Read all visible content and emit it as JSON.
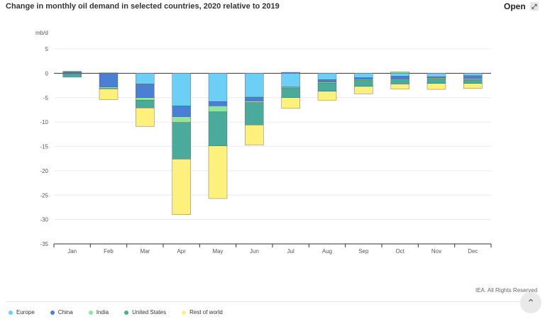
{
  "header": {
    "title": "Change in monthly oil demand in selected countries, 2020 relative to 2019",
    "open_label": "Open",
    "open_icon": "expand-icon"
  },
  "footer": {
    "credit": "IEA. All Rights Reserved"
  },
  "colors": {
    "Europe": "#6dcff6",
    "China": "#4a7fd4",
    "India": "#8ee6a0",
    "United States": "#4aab9d",
    "Rest of world": "#fdf07c"
  },
  "chart_data": {
    "type": "bar",
    "stacked": true,
    "title": "Change in monthly oil demand in selected countries, 2020 relative to 2019",
    "ylabel": "mb/d",
    "ylim": [
      -35,
      5
    ],
    "yticks": [
      5,
      0,
      -5,
      -10,
      -15,
      -20,
      -25,
      -30,
      -35
    ],
    "grid": true,
    "legend_position": "bottom",
    "categories": [
      "Jan",
      "Feb",
      "Mar",
      "Apr",
      "May",
      "Jun",
      "Jul",
      "Aug",
      "Sep",
      "Oct",
      "Nov",
      "Dec"
    ],
    "series": [
      {
        "name": "Europe",
        "values": [
          0.1,
          0.1,
          -2.2,
          -6.7,
          -5.8,
          -4.9,
          -2.8,
          -1.3,
          -0.9,
          -0.6,
          -0.7,
          -0.5
        ]
      },
      {
        "name": "China",
        "values": [
          0.3,
          -2.8,
          -2.8,
          -2.2,
          -0.9,
          -0.8,
          0.2,
          -0.5,
          -0.3,
          -0.5,
          -0.2,
          -0.6
        ]
      },
      {
        "name": "India",
        "values": [
          -0.1,
          -0.3,
          -0.5,
          -1.2,
          -1.2,
          -0.3,
          -0.2,
          -0.2,
          -0.2,
          0.3,
          -0.2,
          -0.2
        ]
      },
      {
        "name": "United States",
        "values": [
          -0.7,
          -0.1,
          -1.6,
          -7.5,
          -7.0,
          -4.6,
          -2.0,
          -1.7,
          -1.3,
          -1.1,
          -1.0,
          -0.8
        ]
      },
      {
        "name": "Rest of world",
        "values": [
          0.0,
          -2.2,
          -3.8,
          -11.4,
          -10.8,
          -4.1,
          -2.2,
          -1.8,
          -1.5,
          -1.0,
          -1.2,
          -1.0
        ]
      }
    ]
  }
}
